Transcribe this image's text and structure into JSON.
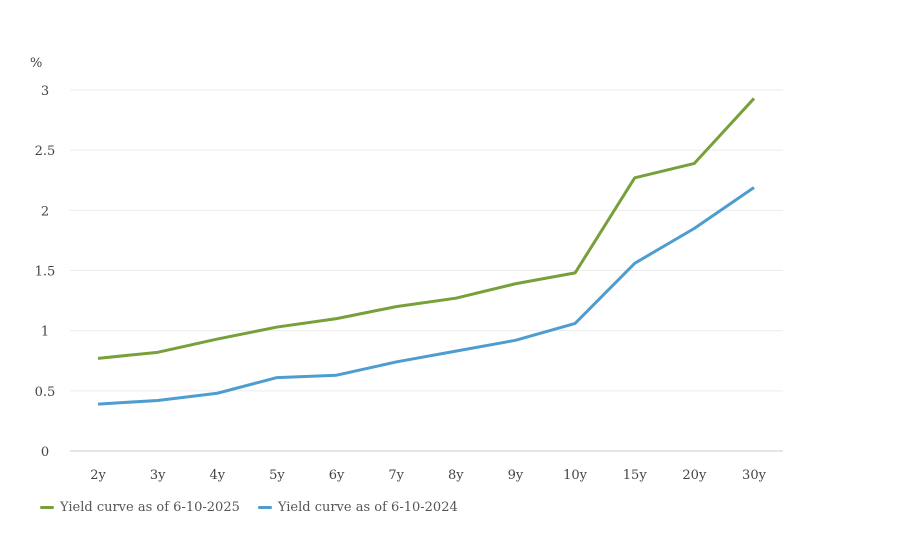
{
  "chart_data": {
    "type": "line",
    "title": "",
    "ylabel": "%",
    "xlabel": "",
    "ylim": [
      0,
      3
    ],
    "yticks": [
      "0",
      "0.5",
      "1",
      "1.5",
      "2",
      "2.5",
      "3"
    ],
    "categories": [
      "2y",
      "3y",
      "4y",
      "5y",
      "6y",
      "7y",
      "8y",
      "9y",
      "10y",
      "15y",
      "20y",
      "30y"
    ],
    "grid": true,
    "legend_position": "bottom-left",
    "series": [
      {
        "name": "Yield curve as of 6-10-2025",
        "color": "#77a03a",
        "values": [
          0.77,
          0.82,
          0.93,
          1.03,
          1.1,
          1.2,
          1.27,
          1.39,
          1.48,
          2.27,
          2.39,
          2.93
        ]
      },
      {
        "name": "Yield curve as of 6-10-2024",
        "color": "#4e9dd0",
        "values": [
          0.39,
          0.42,
          0.48,
          0.61,
          0.63,
          0.74,
          0.83,
          0.92,
          1.06,
          1.56,
          1.85,
          2.19
        ]
      }
    ]
  }
}
